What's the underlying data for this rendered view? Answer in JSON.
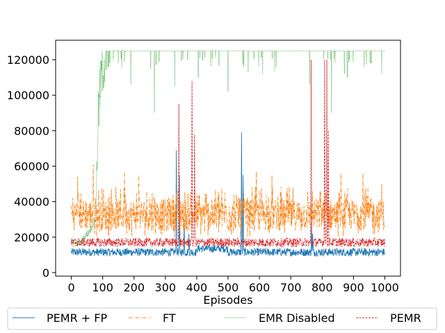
{
  "chart_data": {
    "type": "line",
    "xlabel": "Episodes",
    "ylabel": "",
    "xlim": [
      -50,
      1050
    ],
    "ylim": [
      -2000,
      131000
    ],
    "xticks": [
      0,
      100,
      200,
      300,
      400,
      500,
      600,
      700,
      800,
      900,
      1000
    ],
    "yticks": [
      0,
      20000,
      40000,
      60000,
      80000,
      100000,
      120000
    ],
    "legend_placement": "bottom-center",
    "grid": false,
    "series": [
      {
        "name": "PEMR + FP",
        "color": "#1f77b4",
        "linestyle": "solid",
        "base": 11500,
        "noise": 4500,
        "spikes": [
          [
            335,
            69000
          ],
          [
            345,
            55000
          ],
          [
            360,
            30000
          ],
          [
            375,
            22000
          ],
          [
            543,
            79000
          ],
          [
            548,
            55000
          ],
          [
            766,
            28000
          ],
          [
            770,
            22000
          ]
        ]
      },
      {
        "name": "FT",
        "color": "#ff7f0e",
        "linestyle": "dashdot",
        "base": 30000,
        "noise": 22000,
        "spikes": [
          [
            20,
            54000
          ],
          [
            70,
            61000
          ],
          [
            170,
            57000
          ],
          [
            215,
            55000
          ],
          [
            590,
            57000
          ],
          [
            640,
            55000
          ],
          [
            860,
            56000
          ],
          [
            930,
            56000
          ],
          [
            990,
            50000
          ]
        ]
      },
      {
        "name": "EMR Disabled",
        "color": "#2ca02c",
        "linestyle": "dotted",
        "base": 125000,
        "noise": 0,
        "ramp": [
          [
            0,
            16000
          ],
          [
            30,
            17000
          ],
          [
            60,
            24000
          ],
          [
            78,
            30000
          ],
          [
            85,
            85000
          ],
          [
            95,
            110000
          ],
          [
            110,
            122000
          ],
          [
            125,
            125000
          ]
        ],
        "dips": [
          [
            150,
            118000
          ],
          [
            190,
            106000
          ],
          [
            265,
            90000
          ],
          [
            330,
            105000
          ],
          [
            405,
            110000
          ],
          [
            500,
            102000
          ],
          [
            610,
            112000
          ],
          [
            760,
            106000
          ],
          [
            830,
            90000
          ],
          [
            880,
            110000
          ],
          [
            990,
            112000
          ]
        ]
      },
      {
        "name": "PEMR",
        "color": "#d62728",
        "linestyle": "dashed",
        "base": 17000,
        "noise": 5000,
        "spikes": [
          [
            343,
            95000
          ],
          [
            385,
            108000
          ],
          [
            393,
            78000
          ],
          [
            765,
            120000
          ],
          [
            808,
            120000
          ],
          [
            815,
            120000
          ],
          [
            820,
            80000
          ]
        ]
      }
    ]
  }
}
